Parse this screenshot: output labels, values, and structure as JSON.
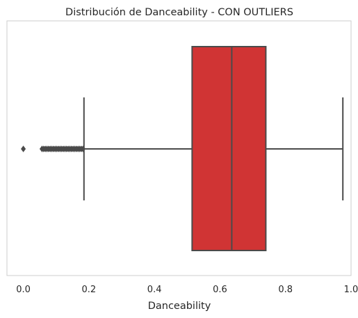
{
  "chart_data": {
    "type": "box",
    "title": "Distribución de Danceability - CON OUTLIERS",
    "xlabel": "Danceability",
    "ylabel": "",
    "xlim": [
      -0.05,
      1.0
    ],
    "xticks": [
      0.0,
      0.2,
      0.4,
      0.6,
      0.8,
      1.0
    ],
    "tick_labels": [
      "0.0",
      "0.2",
      "0.4",
      "0.6",
      "0.8",
      "1.0"
    ],
    "orientation": "horizontal",
    "grid": false,
    "box": {
      "min_whisker": 0.185,
      "q1": 0.515,
      "median": 0.636,
      "q3": 0.74,
      "max_whisker": 0.975,
      "outliers": [
        0.0,
        0.057,
        0.062,
        0.067,
        0.072,
        0.077,
        0.082,
        0.087,
        0.092,
        0.097,
        0.102,
        0.107,
        0.112,
        0.117,
        0.122,
        0.127,
        0.132,
        0.137,
        0.142,
        0.147,
        0.152,
        0.157,
        0.162,
        0.167,
        0.172,
        0.177,
        0.182
      ]
    },
    "colors": {
      "box_fill": "#d03434",
      "lines": "#4a4a4a",
      "axes_border": "#cccccc",
      "text": "#262626"
    }
  }
}
